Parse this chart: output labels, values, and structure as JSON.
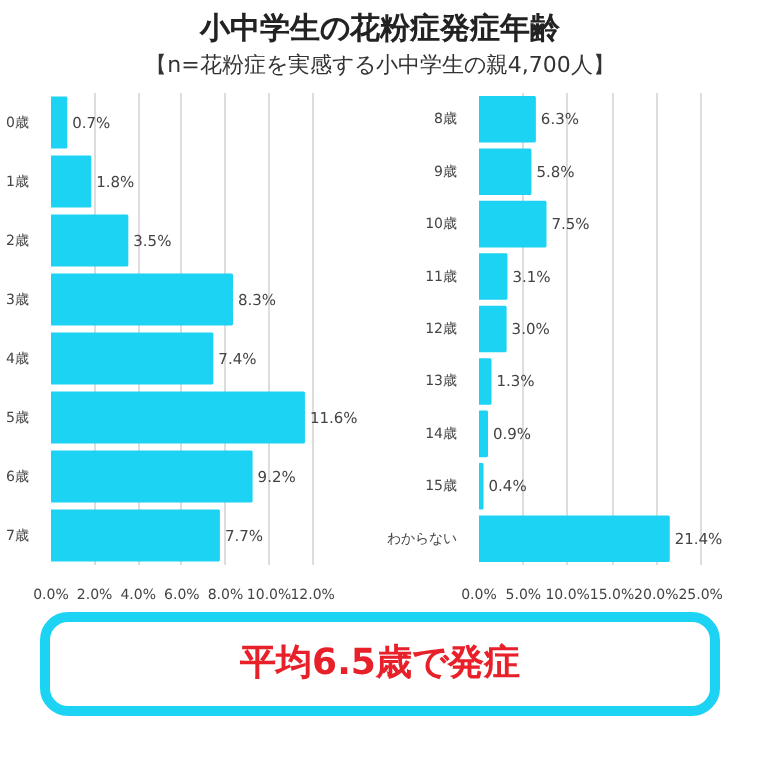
{
  "chart_data": [
    {
      "type": "bar",
      "orientation": "horizontal",
      "title": "小中学生の花粉症発症年齢",
      "subtitle": "【n=花粉症を実感する小中学生の親4,700人】",
      "annotations": [
        "平均6.5歳で発症"
      ],
      "categories": [
        "0歳",
        "1歳",
        "2歳",
        "3歳",
        "4歳",
        "5歳",
        "6歳",
        "7歳"
      ],
      "values": [
        0.7,
        1.8,
        3.5,
        8.3,
        7.4,
        11.6,
        9.2,
        7.7
      ],
      "value_labels": [
        "0.7%",
        "1.8%",
        "3.5%",
        "8.3%",
        "7.4%",
        "11.6%",
        "9.2%",
        "7.7%"
      ],
      "color": "#1cd3f3",
      "xlim": [
        0,
        12
      ],
      "xticks": [
        {
          "value": 0,
          "label": "0.0%"
        },
        {
          "value": 2,
          "label": "2.0%"
        },
        {
          "value": 4,
          "label": "4.0%"
        },
        {
          "value": 6,
          "label": "6.0%"
        },
        {
          "value": 8,
          "label": "8.0%"
        },
        {
          "value": 10,
          "label": "10.0%"
        },
        {
          "value": 12,
          "label": "12.0%"
        }
      ],
      "grid": "x"
    },
    {
      "type": "bar",
      "orientation": "horizontal",
      "categories": [
        "8歳",
        "9歳",
        "10歳",
        "11歳",
        "12歳",
        "13歳",
        "14歳",
        "15歳",
        "わからない"
      ],
      "values": [
        6.3,
        5.8,
        7.5,
        3.1,
        3.0,
        1.3,
        0.9,
        0.4,
        21.4
      ],
      "value_labels": [
        "6.3%",
        "5.8%",
        "7.5%",
        "3.1%",
        "3.0%",
        "1.3%",
        "0.9%",
        "0.4%",
        "21.4%"
      ],
      "color": "#1cd3f3",
      "xlim": [
        0,
        25
      ],
      "xticks": [
        {
          "value": 0,
          "label": "0.0%"
        },
        {
          "value": 5,
          "label": "5.0%"
        },
        {
          "value": 10,
          "label": "10.0%"
        },
        {
          "value": 15,
          "label": "15.0%"
        },
        {
          "value": 20,
          "label": "20.0%"
        },
        {
          "value": 25,
          "label": "25.0%"
        }
      ],
      "grid": "x"
    }
  ]
}
